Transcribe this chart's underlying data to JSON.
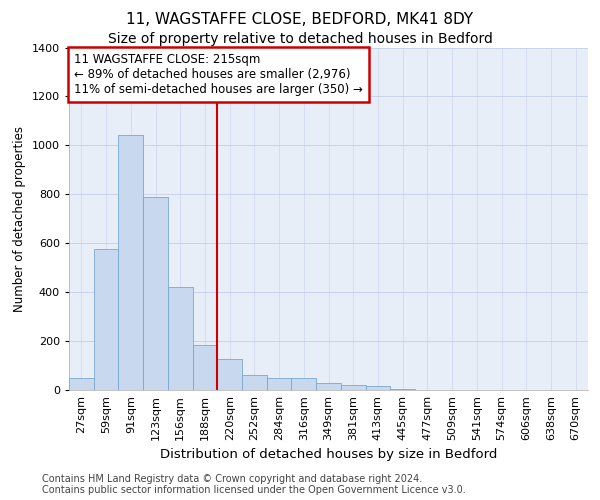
{
  "title_line1": "11, WAGSTAFFE CLOSE, BEDFORD, MK41 8DY",
  "title_line2": "Size of property relative to detached houses in Bedford",
  "xlabel": "Distribution of detached houses by size in Bedford",
  "ylabel": "Number of detached properties",
  "categories": [
    "27sqm",
    "59sqm",
    "91sqm",
    "123sqm",
    "156sqm",
    "188sqm",
    "220sqm",
    "252sqm",
    "284sqm",
    "316sqm",
    "349sqm",
    "381sqm",
    "413sqm",
    "445sqm",
    "477sqm",
    "509sqm",
    "541sqm",
    "574sqm",
    "606sqm",
    "638sqm",
    "670sqm"
  ],
  "values": [
    48,
    575,
    1043,
    790,
    422,
    185,
    125,
    62,
    48,
    48,
    28,
    22,
    18,
    3,
    0,
    0,
    0,
    0,
    0,
    0,
    0
  ],
  "bar_color": "#c8d8ef",
  "bar_edge_color": "#7aa8d0",
  "vline_color": "#cc0000",
  "vline_position": 5.5,
  "annotation_text": "11 WAGSTAFFE CLOSE: 215sqm\n← 89% of detached houses are smaller (2,976)\n11% of semi-detached houses are larger (350) →",
  "annotation_box_edge": "#cc0000",
  "ylim": [
    0,
    1400
  ],
  "yticks": [
    0,
    200,
    400,
    600,
    800,
    1000,
    1200,
    1400
  ],
  "background_color": "#e8eef8",
  "grid_color": "#c5cfe8",
  "footer_line1": "Contains HM Land Registry data © Crown copyright and database right 2024.",
  "footer_line2": "Contains public sector information licensed under the Open Government Licence v3.0.",
  "title_fontsize": 11,
  "subtitle_fontsize": 10,
  "xlabel_fontsize": 9.5,
  "ylabel_fontsize": 8.5,
  "tick_fontsize": 8,
  "annotation_fontsize": 8.5,
  "footer_fontsize": 7
}
